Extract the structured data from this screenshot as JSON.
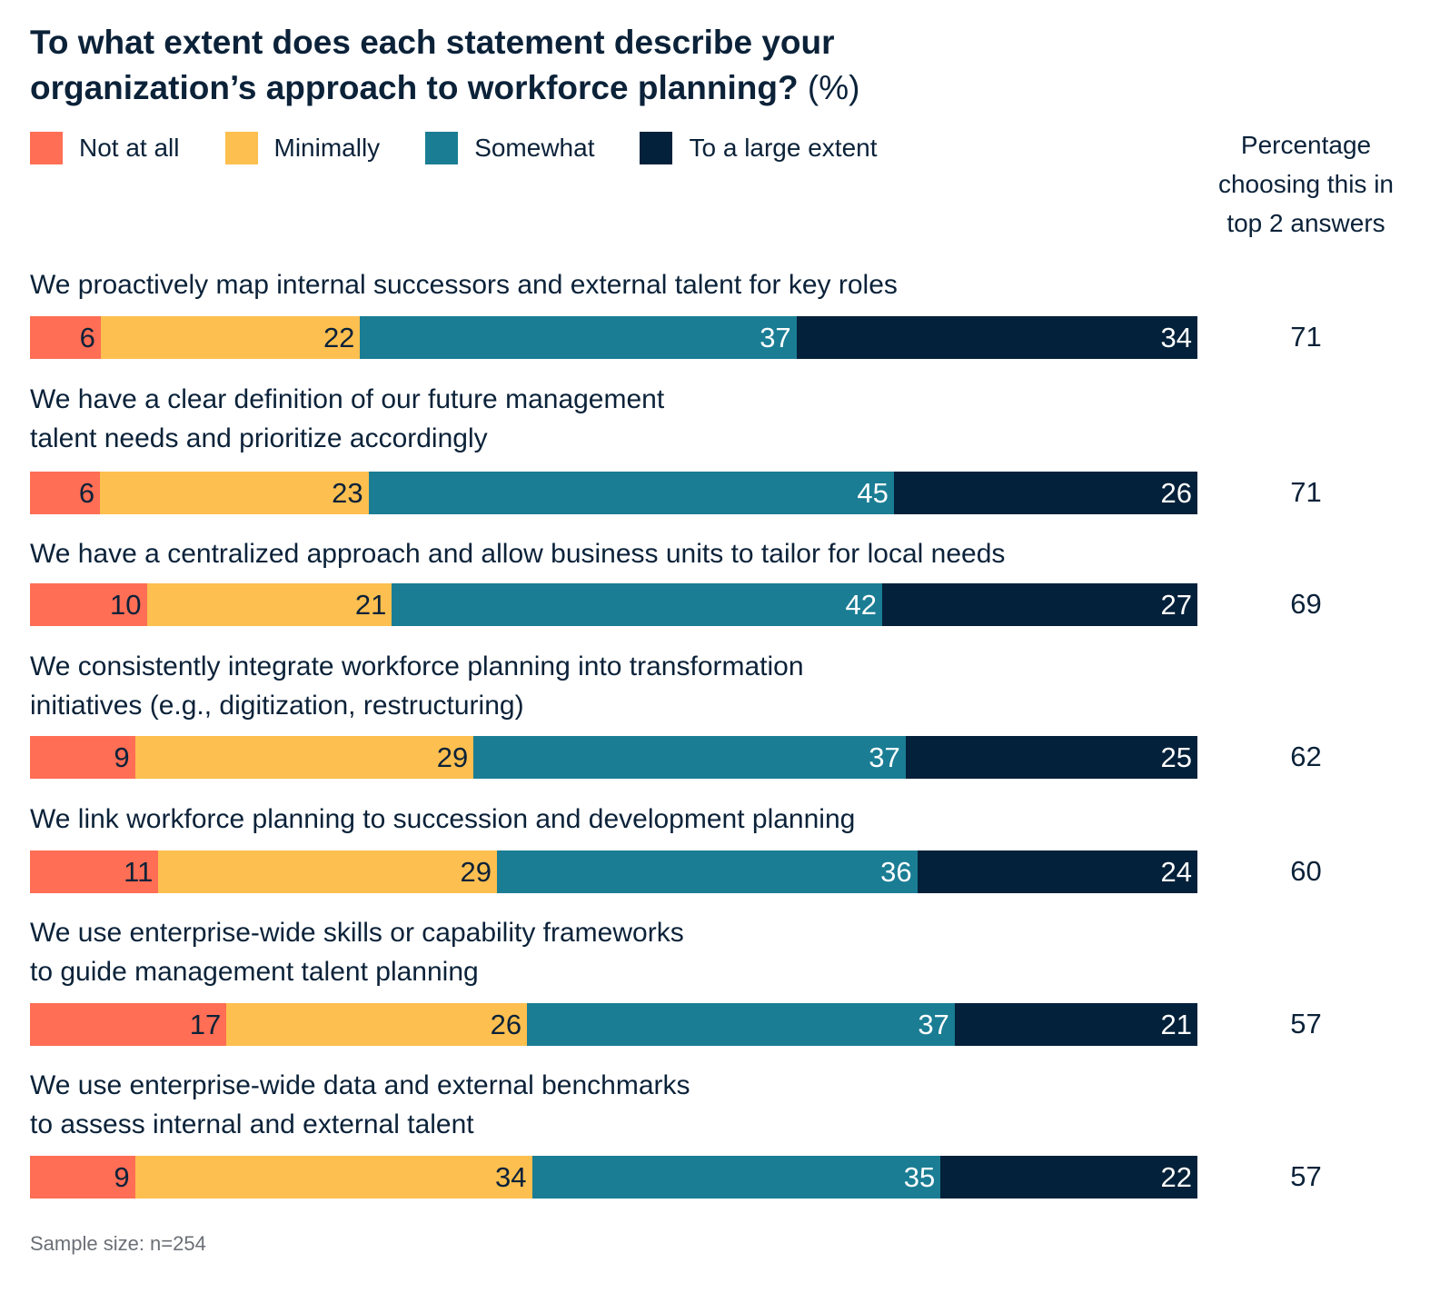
{
  "title": "To what extent does each statement describe your organization’s approach to workforce planning?",
  "title_unit": "(%)",
  "column_header": "Percentage choosing this in top 2 answers",
  "note": "Sample size: n=254",
  "chart_data": {
    "type": "bar",
    "orientation": "horizontal-stacked-100",
    "title": "To what extent does each statement describe your organization’s approach to workforce planning? (%)",
    "legend_placement": "top-left",
    "series": [
      {
        "name": "Not at all",
        "color": "#FF6E55",
        "values": [
          6,
          6,
          10,
          9,
          11,
          17,
          9
        ]
      },
      {
        "name": "Minimally",
        "color": "#FDBF4F",
        "values": [
          22,
          23,
          21,
          29,
          29,
          26,
          34
        ]
      },
      {
        "name": "Somewhat",
        "color": "#1A7D94",
        "values": [
          37,
          45,
          42,
          37,
          36,
          37,
          35
        ]
      },
      {
        "name": "To a large extent",
        "color": "#03213A",
        "values": [
          34,
          26,
          27,
          25,
          24,
          21,
          22
        ]
      }
    ],
    "categories": [
      "We proactively map internal successors and external talent for key roles",
      "We have a clear definition of our future management\ntalent needs and prioritize accordingly",
      "We have a centralized approach and allow business units to tailor for local needs",
      "We consistently integrate workforce planning into transformation\ninitiatives (e.g., digitization, restructuring)",
      "We link workforce planning to succession and development planning",
      "We use enterprise-wide skills or capability frameworks\nto guide management talent planning",
      "We use enterprise-wide data and external benchmarks\nto assess internal and external talent"
    ],
    "top2": [
      71,
      71,
      69,
      62,
      60,
      57,
      57
    ]
  }
}
